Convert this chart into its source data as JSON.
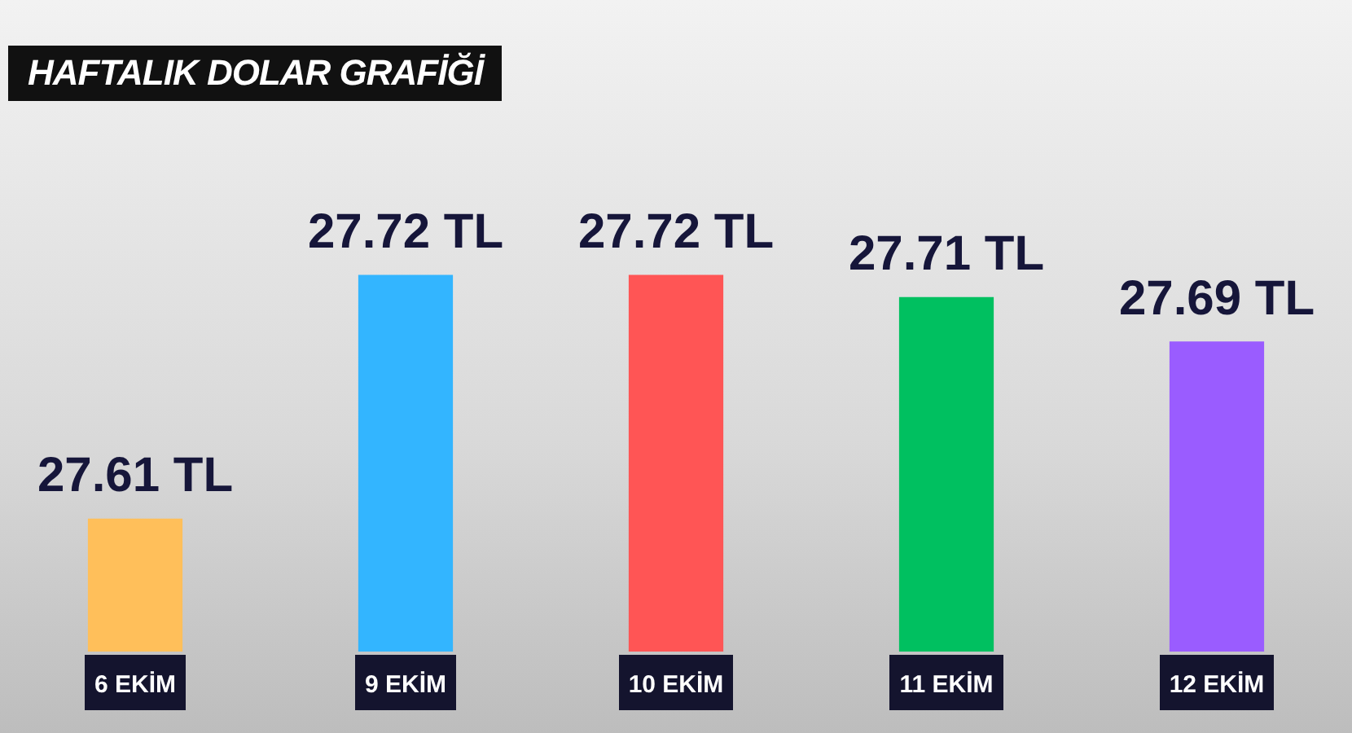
{
  "chart_data": {
    "type": "bar",
    "title": "HAFTALIK DOLAR GRAFİĞİ",
    "categories": [
      "6 EKİM",
      "9 EKİM",
      "10 EKİM",
      "11 EKİM",
      "12 EKİM"
    ],
    "values": [
      27.61,
      27.72,
      27.72,
      27.71,
      27.69
    ],
    "value_labels": [
      "27.61 TL",
      "27.72 TL",
      "27.72 TL",
      "27.71 TL",
      "27.69 TL"
    ],
    "colors": [
      "#ffbf5a",
      "#33b5ff",
      "#ff5555",
      "#00c060",
      "#9a5cff"
    ],
    "grid": false,
    "legend": false
  }
}
